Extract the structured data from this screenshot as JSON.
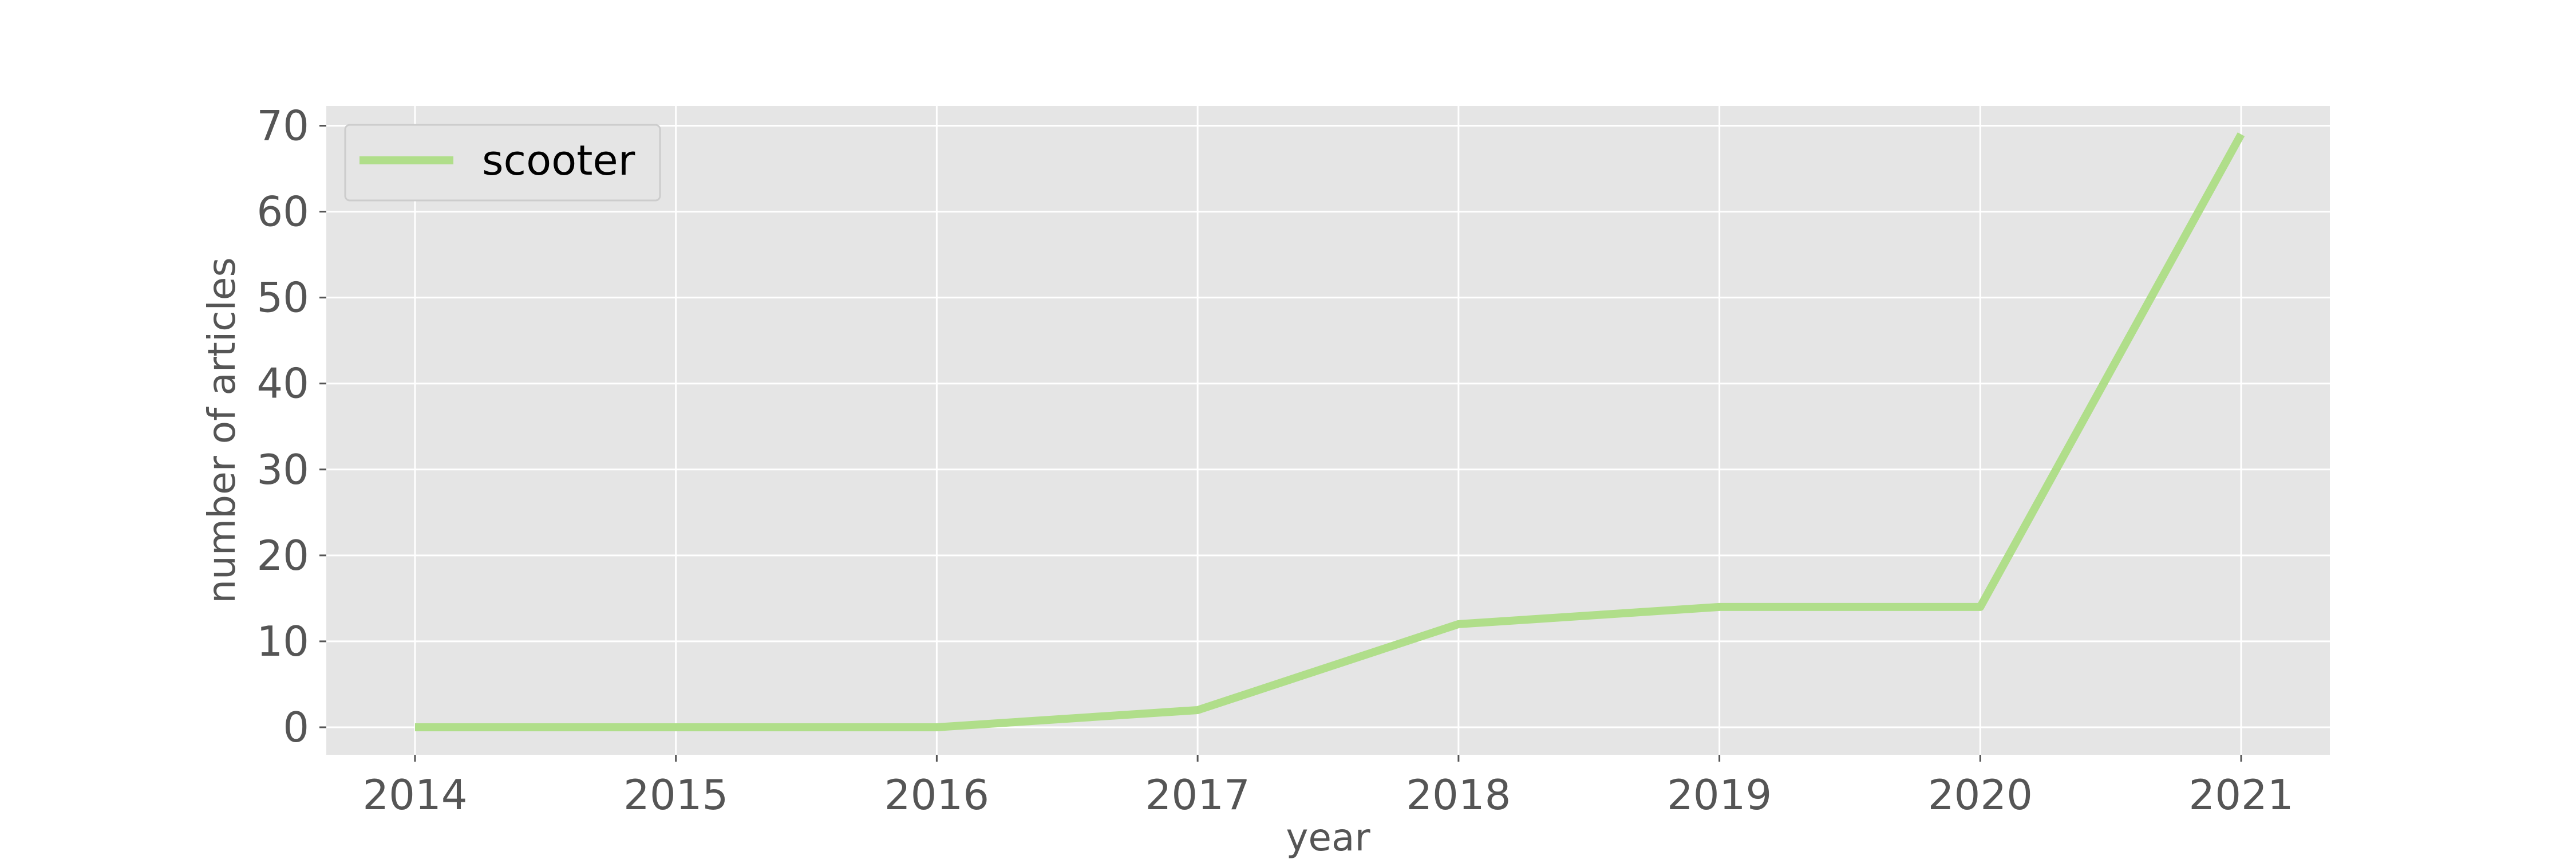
{
  "chart_data": {
    "type": "line",
    "title": "",
    "xlabel": "year",
    "ylabel": "number of articles",
    "x": [
      2014,
      2015,
      2016,
      2017,
      2018,
      2019,
      2020,
      2021
    ],
    "x_tick_labels": [
      "2014",
      "2015",
      "2016",
      "2017",
      "2018",
      "2019",
      "2020",
      "2021"
    ],
    "y_ticks": [
      0,
      10,
      20,
      30,
      40,
      50,
      60,
      70
    ],
    "y_tick_labels": [
      "0",
      "10",
      "20",
      "30",
      "40",
      "50",
      "60",
      "70"
    ],
    "xlim": [
      2013.66,
      2021.34
    ],
    "ylim": [
      -3.2,
      72.3
    ],
    "grid": true,
    "legend_position": "top-left",
    "series": [
      {
        "name": "scooter",
        "values": [
          0,
          0,
          0,
          2,
          12,
          14,
          14,
          69
        ],
        "color": "#b0de8a"
      }
    ],
    "background_color": "#e5e5e5",
    "grid_color": "#ffffff"
  }
}
